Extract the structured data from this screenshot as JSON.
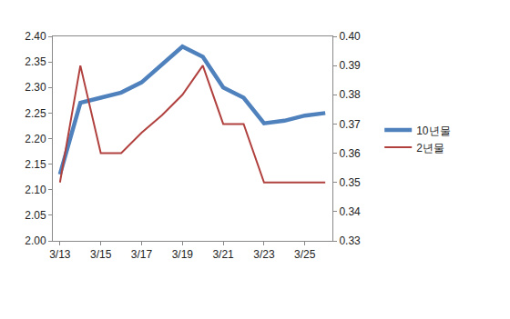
{
  "chart_data": {
    "type": "line",
    "categories": [
      "3/13",
      null,
      "3/15",
      null,
      "3/17",
      null,
      "3/19",
      null,
      "3/21",
      null,
      "3/23",
      null,
      "3/25",
      null
    ],
    "series": [
      {
        "name": "10년물",
        "color": "#4f81bd",
        "axis": "y",
        "values": [
          2.13,
          2.27,
          2.28,
          2.29,
          2.31,
          2.345,
          2.38,
          2.36,
          2.3,
          2.28,
          2.23,
          2.235,
          2.245,
          2.25
        ]
      },
      {
        "name": "2년물",
        "color": "#b0413e",
        "axis": "y2",
        "values": [
          0.35,
          0.39,
          0.36,
          0.36,
          0.367,
          0.373,
          0.38,
          0.39,
          0.37,
          0.37,
          0.35,
          0.35,
          0.35,
          0.35
        ]
      }
    ],
    "ylim": [
      2.0,
      2.4
    ],
    "yticks": [
      {
        "value": 2.0,
        "label": "2.00"
      },
      2.05,
      {
        "value": 2.1,
        "label": "2.10"
      },
      2.15,
      {
        "value": 2.2,
        "label": "2.20"
      },
      2.25,
      {
        "value": 2.3,
        "label": "2.30"
      },
      2.35,
      {
        "value": 2.4,
        "label": "2.40"
      }
    ],
    "y2lim": [
      0.33,
      0.4
    ],
    "y2ticks": [
      0.33,
      0.34,
      0.35,
      0.36,
      0.37,
      0.38,
      0.39,
      {
        "value": 0.4,
        "label": "0.40"
      }
    ],
    "grid": false,
    "legend": "right"
  }
}
